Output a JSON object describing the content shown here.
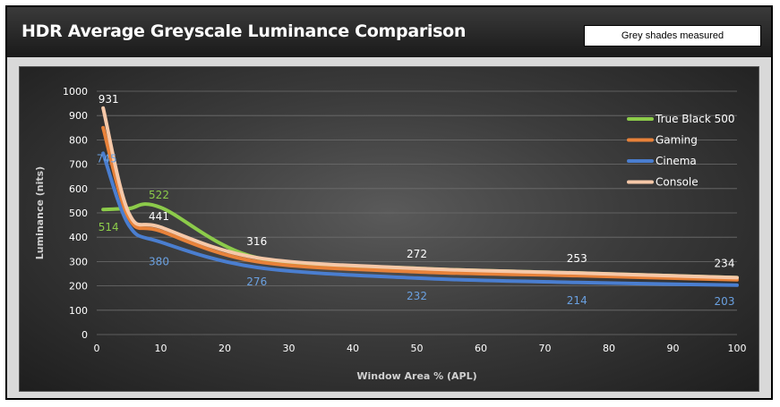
{
  "header": {
    "title": "HDR Average Greyscale Luminance Comparison",
    "box_text": "Grey shades measured"
  },
  "chart_data": {
    "type": "line",
    "xlabel": "Window Area % (APL)",
    "ylabel": "Luminance (nits)",
    "xlim": [
      0,
      100
    ],
    "ylim": [
      0,
      1000
    ],
    "xticks": [
      0,
      10,
      20,
      30,
      40,
      50,
      60,
      70,
      80,
      90,
      100
    ],
    "yticks": [
      0,
      100,
      200,
      300,
      400,
      500,
      600,
      700,
      800,
      900,
      1000
    ],
    "grid": true,
    "legend_position": "top-right",
    "series": [
      {
        "name": "True Black 500",
        "color": "#8ccb4a",
        "x": [
          1,
          5,
          10,
          25,
          50,
          75,
          100
        ],
        "y": [
          514,
          518,
          522,
          316,
          272,
          253,
          234
        ]
      },
      {
        "name": "Gaming",
        "color": "#e8823a",
        "x": [
          1,
          5,
          10,
          25,
          50,
          75,
          100
        ],
        "y": [
          850,
          480,
          425,
          300,
          258,
          242,
          225
        ]
      },
      {
        "name": "Cinema",
        "color": "#4a7ed0",
        "x": [
          1,
          5,
          10,
          25,
          50,
          75,
          100
        ],
        "y": [
          745,
          450,
          380,
          276,
          232,
          214,
          203
        ]
      },
      {
        "name": "Console",
        "color": "#f6c8a8",
        "x": [
          1,
          5,
          10,
          25,
          50,
          75,
          100
        ],
        "y": [
          931,
          500,
          441,
          316,
          272,
          253,
          234
        ]
      }
    ],
    "data_labels": [
      {
        "text": "931",
        "x": 1,
        "y": 931,
        "color": "#ffffff",
        "dx": 6,
        "dy": -6
      },
      {
        "text": "745",
        "x": 1,
        "y": 745,
        "color": "#6aa0e0",
        "dx": 4,
        "dy": 10
      },
      {
        "text": "514",
        "x": 1,
        "y": 514,
        "color": "#8ccb4a",
        "dx": 6,
        "dy": 24
      },
      {
        "text": "522",
        "x": 10,
        "y": 522,
        "color": "#8ccb4a",
        "dx": -2,
        "dy": -10
      },
      {
        "text": "441",
        "x": 10,
        "y": 441,
        "color": "#ffffff",
        "dx": -2,
        "dy": -8
      },
      {
        "text": "380",
        "x": 10,
        "y": 380,
        "color": "#6aa0e0",
        "dx": -2,
        "dy": 26
      },
      {
        "text": "316",
        "x": 25,
        "y": 316,
        "color": "#ffffff",
        "dx": 0,
        "dy": -14
      },
      {
        "text": "276",
        "x": 25,
        "y": 276,
        "color": "#6aa0e0",
        "dx": 0,
        "dy": 20
      },
      {
        "text": "272",
        "x": 50,
        "y": 272,
        "color": "#ffffff",
        "dx": 0,
        "dy": -12
      },
      {
        "text": "232",
        "x": 50,
        "y": 232,
        "color": "#6aa0e0",
        "dx": 0,
        "dy": 24
      },
      {
        "text": "253",
        "x": 75,
        "y": 253,
        "color": "#ffffff",
        "dx": 0,
        "dy": -12
      },
      {
        "text": "214",
        "x": 75,
        "y": 214,
        "color": "#6aa0e0",
        "dx": 0,
        "dy": 24
      },
      {
        "text": "234",
        "x": 100,
        "y": 234,
        "color": "#ffffff",
        "dx": -14,
        "dy": -12
      },
      {
        "text": "203",
        "x": 100,
        "y": 203,
        "color": "#6aa0e0",
        "dx": -14,
        "dy": 22
      }
    ]
  }
}
